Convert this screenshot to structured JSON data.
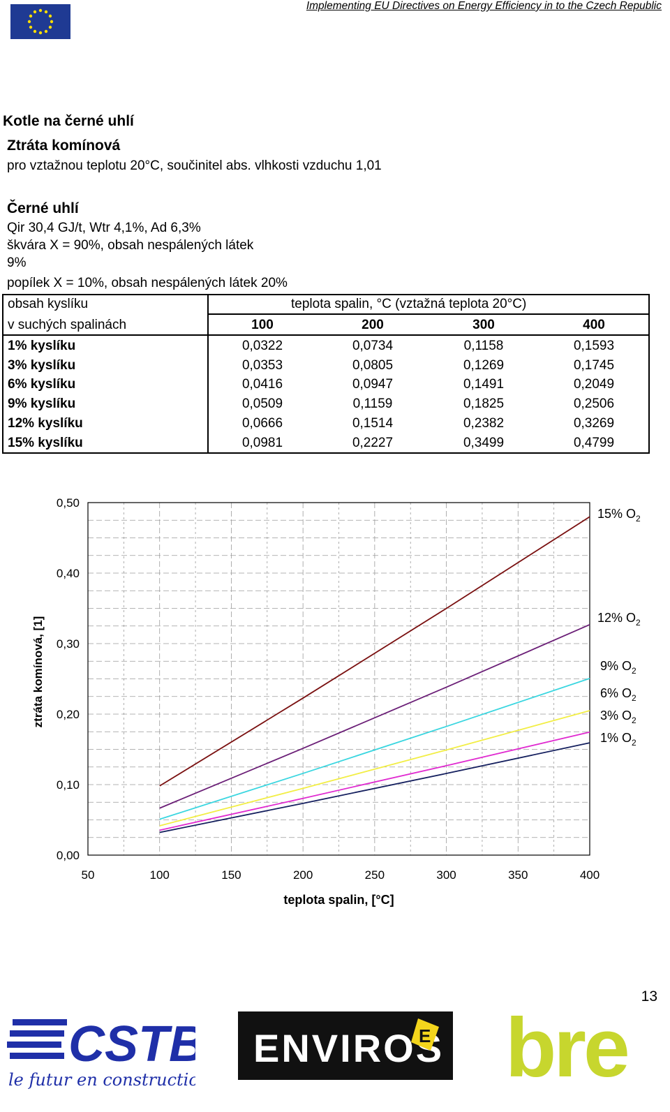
{
  "header": {
    "running_title": "Implementing EU Directives on Energy Efficiency in to the Czech Republic"
  },
  "intro": {
    "title": "Kotle na černé uhlí",
    "subtitle": "Ztráta komínová",
    "reference": "pro vztažnou teplotu 20°C, součinitel abs. vlhkosti vzduchu 1,01",
    "fuel_title": "Černé uhlí",
    "fuel_props": "Qir 30,4 GJ/t, Wtr 4,1%, Ad 6,3%",
    "slag_line1": "škvára X = 90%, obsah nespálených látek",
    "slag_line2": "9%",
    "ash_line": "popílek X = 10%, obsah nespálených látek 20%"
  },
  "table": {
    "header_left_1": "obsah kyslíku",
    "header_left_2": "v suchých spalinách",
    "header_span": "teplota spalin, °C  (vztažná teplota 20°C)",
    "temperatures": [
      "100",
      "200",
      "300",
      "400"
    ],
    "rows": [
      {
        "label": "1% kyslíku",
        "values": [
          "0,0322",
          "0,0734",
          "0,1158",
          "0,1593"
        ]
      },
      {
        "label": "3% kyslíku",
        "values": [
          "0,0353",
          "0,0805",
          "0,1269",
          "0,1745"
        ]
      },
      {
        "label": "6% kyslíku",
        "values": [
          "0,0416",
          "0,0947",
          "0,1491",
          "0,2049"
        ]
      },
      {
        "label": "9% kyslíku",
        "values": [
          "0,0509",
          "0,1159",
          "0,1825",
          "0,2506"
        ]
      },
      {
        "label": "12% kyslíku",
        "values": [
          "0,0666",
          "0,1514",
          "0,2382",
          "0,3269"
        ]
      },
      {
        "label": "15% kyslíku",
        "values": [
          "0,0981",
          "0,2227",
          "0,3499",
          "0,4799"
        ]
      }
    ]
  },
  "chart_data": {
    "type": "line",
    "xlabel": "teplota spalin, [°C]",
    "ylabel": "ztráta komínová, [1]",
    "xlim": [
      50,
      400
    ],
    "ylim": [
      0,
      0.5
    ],
    "x_ticks": [
      "50",
      "100",
      "150",
      "200",
      "250",
      "300",
      "350",
      "400"
    ],
    "y_ticks": [
      "0,00",
      "0,10",
      "0,20",
      "0,30",
      "0,40",
      "0,50"
    ],
    "grid": true,
    "x": [
      100,
      200,
      300,
      400
    ],
    "series": [
      {
        "name": "15% O2",
        "label_main": "15% O",
        "label_sub": "2",
        "color": "#7a1010",
        "values": [
          0.0981,
          0.2227,
          0.3499,
          0.4799
        ]
      },
      {
        "name": "12% O2",
        "label_main": "12% O",
        "label_sub": "2",
        "color": "#6b1f77",
        "values": [
          0.0666,
          0.1514,
          0.2382,
          0.3269
        ]
      },
      {
        "name": "9% O2",
        "label_main": "9% O",
        "label_sub": "2",
        "color": "#3ad6e0",
        "values": [
          0.0509,
          0.1159,
          0.1825,
          0.2506
        ]
      },
      {
        "name": "6% O2",
        "label_main": "6% O",
        "label_sub": "2",
        "color": "#f2ee45",
        "values": [
          0.0416,
          0.0947,
          0.1491,
          0.2049
        ]
      },
      {
        "name": "3% O2",
        "label_main": "3% O",
        "label_sub": "2",
        "color": "#e02ad0",
        "values": [
          0.0353,
          0.0805,
          0.1269,
          0.1745
        ]
      },
      {
        "name": "1% O2",
        "label_main": "1% O",
        "label_sub": "2",
        "color": "#141f5e",
        "values": [
          0.0322,
          0.0734,
          0.1158,
          0.1593
        ]
      }
    ]
  },
  "footer": {
    "page_number": "13",
    "logo_cstb": "CSTB",
    "logo_cstb_tagline": "le futur en construction",
    "logo_enviros": "ENVIROS",
    "logo_enviros_badge": "E",
    "logo_bre": "bre"
  },
  "colors": {
    "eu_blue": "#1f3a93",
    "eu_star": "#ffdd00",
    "cstb_blue": "#1f2fa8",
    "enviros_black": "#111111",
    "enviros_yellow": "#f3d51c",
    "bre_green": "#c7d62e"
  }
}
